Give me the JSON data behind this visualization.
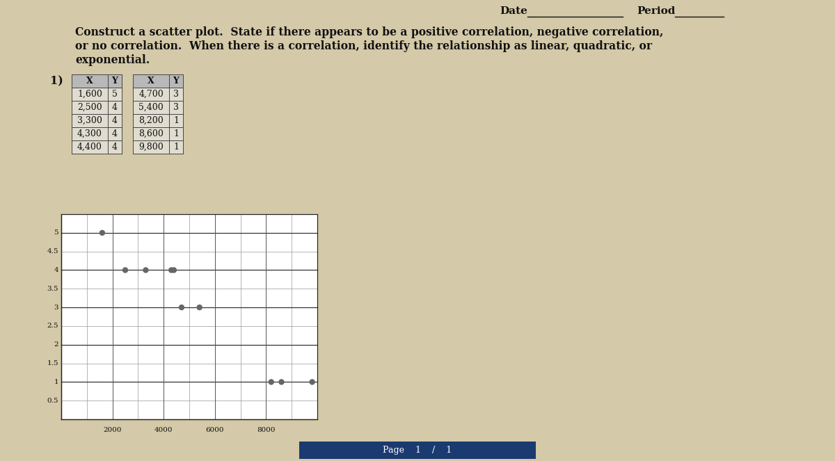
{
  "title_line1": "Construct a scatter plot.  State if there appears to be a positive correlation, negative correlation,",
  "title_line2": "or no correlation.  When there is a correlation, identify the relationship as linear, quadratic, or",
  "title_line3": "exponential.",
  "date_label": "Date",
  "period_label": "Period",
  "problem_number": "1)",
  "table1": {
    "headers": [
      "X",
      "Y"
    ],
    "data": [
      [
        1600,
        5
      ],
      [
        2500,
        4
      ],
      [
        3300,
        4
      ],
      [
        4300,
        4
      ],
      [
        4400,
        4
      ]
    ]
  },
  "table2": {
    "headers": [
      "X",
      "Y"
    ],
    "data": [
      [
        4700,
        3
      ],
      [
        5400,
        3
      ],
      [
        8200,
        1
      ],
      [
        8600,
        1
      ],
      [
        9800,
        1
      ]
    ]
  },
  "scatter_x": [
    1600,
    2500,
    3300,
    4300,
    4400,
    4700,
    5400,
    8200,
    8600,
    9800
  ],
  "scatter_y": [
    5,
    4,
    4,
    4,
    4,
    3,
    3,
    1,
    1,
    1
  ],
  "xlim": [
    0,
    10000
  ],
  "ylim": [
    0,
    5.5
  ],
  "xticks": [
    2000,
    4000,
    6000,
    8000
  ],
  "yticks": [
    0.5,
    1,
    1.5,
    2,
    2.5,
    3,
    3.5,
    4,
    4.5,
    5
  ],
  "bg_color": "#d4c9a8",
  "grid_color": "#999999",
  "table_bg": "#b8b8b8",
  "table_row_bg": "#e0ddd0",
  "plot_bg": "#ffffff",
  "text_color": "#111111",
  "scatter_color": "#666666",
  "font_size_title": 11.2,
  "font_size_table": 9.0,
  "font_size_axis": 7.5,
  "footer_color": "#1a3a70"
}
